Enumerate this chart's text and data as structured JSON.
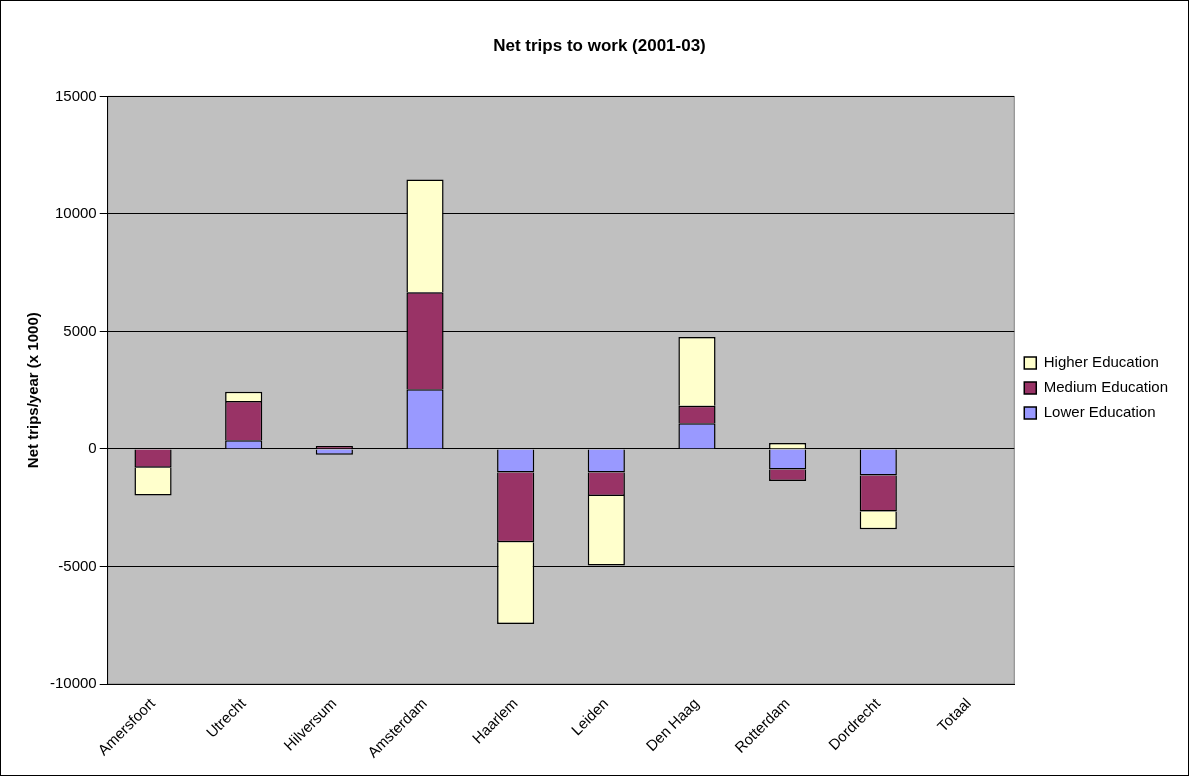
{
  "chart_data": {
    "type": "bar",
    "title": "Net trips to work (2001-03)",
    "ylabel": "Net trips/year (x 1000)",
    "stacked": true,
    "categories": [
      "Amersfoort",
      "Utrecht",
      "Hilversum",
      "Amsterdam",
      "Haarlem",
      "Leiden",
      "Den Haag",
      "Rotterdam",
      "Dordrecht",
      "Totaal"
    ],
    "series": [
      {
        "name": "Lower Education",
        "color": "#9999ff",
        "values": [
          null,
          370,
          -250,
          2540,
          -1000,
          -1000,
          1100,
          -870,
          -1130,
          null
        ]
      },
      {
        "name": "Medium Education",
        "color": "#993366",
        "values": [
          -800,
          1670,
          130,
          4130,
          -2970,
          -1000,
          740,
          -490,
          -1530,
          null
        ]
      },
      {
        "name": "Higher Education",
        "color": "#ffffcc",
        "values": [
          -1180,
          390,
          null,
          4790,
          -3480,
          -2960,
          2920,
          260,
          -750,
          null
        ]
      }
    ],
    "ylim": [
      -10000,
      15000
    ],
    "yticks": [
      -10000,
      -5000,
      0,
      5000,
      10000,
      15000
    ],
    "grid": "y",
    "legend": "right"
  }
}
